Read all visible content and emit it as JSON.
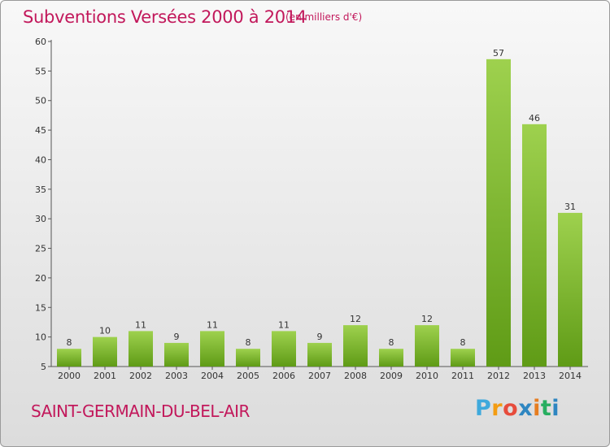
{
  "title": "Subventions Versées 2000 à 2014",
  "subtitle": "(en milliers d'€)",
  "place": "SAINT-GERMAIN-DU-BEL-AIR",
  "logo": {
    "letters": [
      "P",
      "r",
      "o",
      "x",
      "i",
      "t",
      "i"
    ],
    "colors": [
      "#3fa9dc",
      "#f39c12",
      "#e74c3c",
      "#2e86c1",
      "#e67e22",
      "#27ae60",
      "#2e86c1"
    ]
  },
  "colors": {
    "title": "#c2185b",
    "bar_light": "#9ed14e",
    "bar_dark": "#5f9b16"
  },
  "chart_data": {
    "type": "bar",
    "title": "Subventions Versées 2000 à 2014",
    "ylabel": "",
    "xlabel": "",
    "categories": [
      "2000",
      "2001",
      "2002",
      "2003",
      "2004",
      "2005",
      "2006",
      "2007",
      "2008",
      "2009",
      "2010",
      "2011",
      "2012",
      "2013",
      "2014"
    ],
    "values": [
      8,
      10,
      11,
      9,
      11,
      8,
      11,
      9,
      12,
      8,
      12,
      8,
      57,
      46,
      31
    ],
    "ylim": [
      5,
      60
    ],
    "yticks": [
      5,
      10,
      15,
      20,
      25,
      30,
      35,
      40,
      45,
      50,
      55,
      60
    ],
    "grid": false,
    "legend": "none"
  }
}
